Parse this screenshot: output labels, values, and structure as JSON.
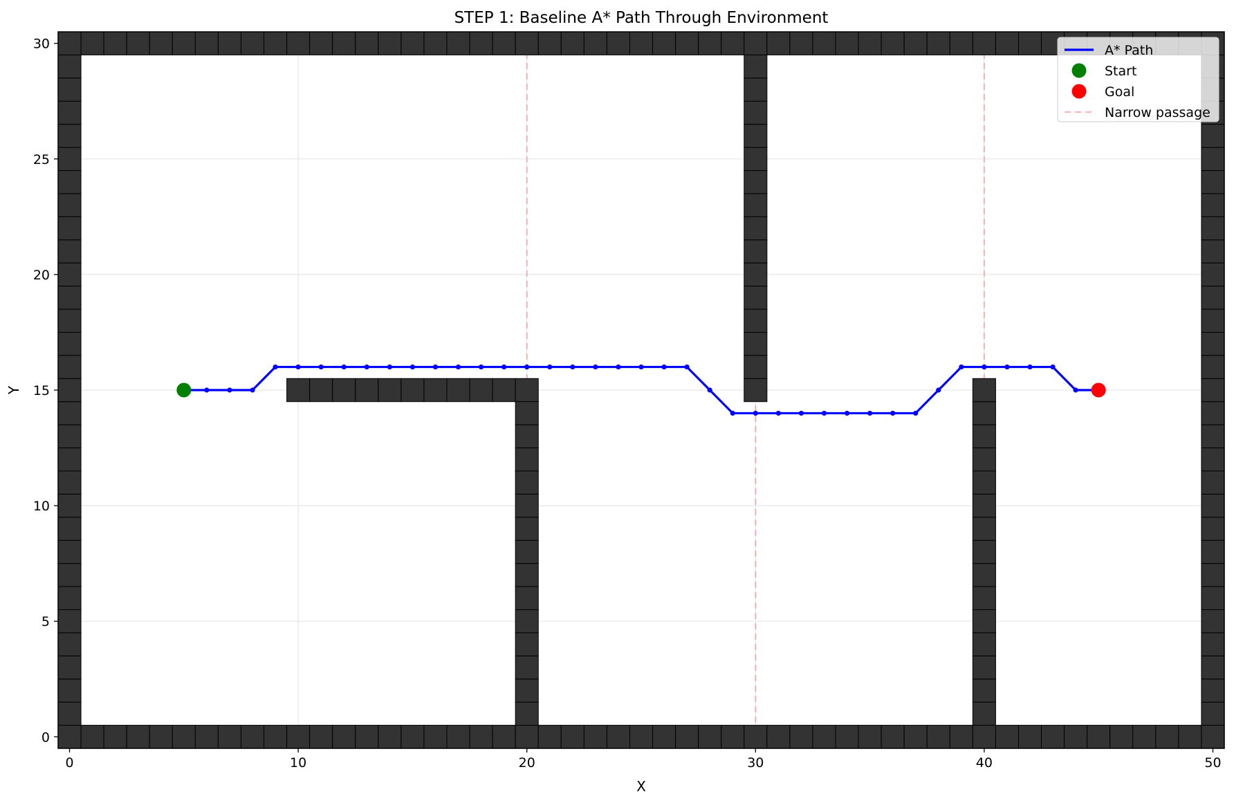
{
  "chart_data": {
    "type": "line",
    "title": "STEP 1: Baseline A* Path Through Environment",
    "xlabel": "X",
    "ylabel": "Y",
    "xlim": [
      -0.5,
      50.5
    ],
    "ylim": [
      -0.5,
      30.5
    ],
    "xticks": [
      0,
      10,
      20,
      30,
      40,
      50
    ],
    "yticks": [
      0,
      5,
      10,
      15,
      20,
      25,
      30
    ],
    "grid": true,
    "legend_position": "top-right",
    "legend": [
      {
        "label": "A* Path",
        "kind": "line",
        "color": "#0000ff"
      },
      {
        "label": "Start",
        "kind": "marker",
        "color": "#008000"
      },
      {
        "label": "Goal",
        "kind": "marker",
        "color": "#ff0000"
      },
      {
        "label": "Narrow passage",
        "kind": "dashed",
        "color": "#ffb3b3"
      }
    ],
    "colors": {
      "path": "#0000ff",
      "start": "#008000",
      "goal": "#ff0000",
      "obstacle": "#333333",
      "narrow_passage": "#f08080"
    },
    "obstacles": {
      "bottom_wall": {
        "y": 0,
        "x_range": [
          0,
          50
        ]
      },
      "top_wall": {
        "y": 30,
        "x_range": [
          0,
          50
        ]
      },
      "left_wall": {
        "x": 0,
        "y_range": [
          0,
          30
        ]
      },
      "right_wall": {
        "x": 50,
        "y_range": [
          0,
          30
        ]
      },
      "horizontal_ledge": {
        "y": 15,
        "x_range": [
          10,
          20
        ]
      },
      "walls": [
        {
          "x": 20,
          "y_range": [
            0,
            15
          ]
        },
        {
          "x": 30,
          "y_range": [
            15,
            30
          ]
        },
        {
          "x": 40,
          "y_range": [
            0,
            15
          ]
        }
      ]
    },
    "narrow_passages_x": [
      20,
      30,
      40
    ],
    "path": {
      "name": "A* Path",
      "points": [
        [
          5,
          15
        ],
        [
          6,
          15
        ],
        [
          7,
          15
        ],
        [
          8,
          15
        ],
        [
          9,
          16
        ],
        [
          10,
          16
        ],
        [
          11,
          16
        ],
        [
          12,
          16
        ],
        [
          13,
          16
        ],
        [
          14,
          16
        ],
        [
          15,
          16
        ],
        [
          16,
          16
        ],
        [
          17,
          16
        ],
        [
          18,
          16
        ],
        [
          19,
          16
        ],
        [
          20,
          16
        ],
        [
          21,
          16
        ],
        [
          22,
          16
        ],
        [
          23,
          16
        ],
        [
          24,
          16
        ],
        [
          25,
          16
        ],
        [
          26,
          16
        ],
        [
          27,
          16
        ],
        [
          28,
          15
        ],
        [
          29,
          14
        ],
        [
          30,
          14
        ],
        [
          31,
          14
        ],
        [
          32,
          14
        ],
        [
          33,
          14
        ],
        [
          34,
          14
        ],
        [
          35,
          14
        ],
        [
          36,
          14
        ],
        [
          37,
          14
        ],
        [
          38,
          15
        ],
        [
          39,
          16
        ],
        [
          40,
          16
        ],
        [
          41,
          16
        ],
        [
          42,
          16
        ],
        [
          43,
          16
        ],
        [
          44,
          15
        ],
        [
          45,
          15
        ]
      ]
    },
    "start": [
      5,
      15
    ],
    "goal": [
      45,
      15
    ]
  }
}
